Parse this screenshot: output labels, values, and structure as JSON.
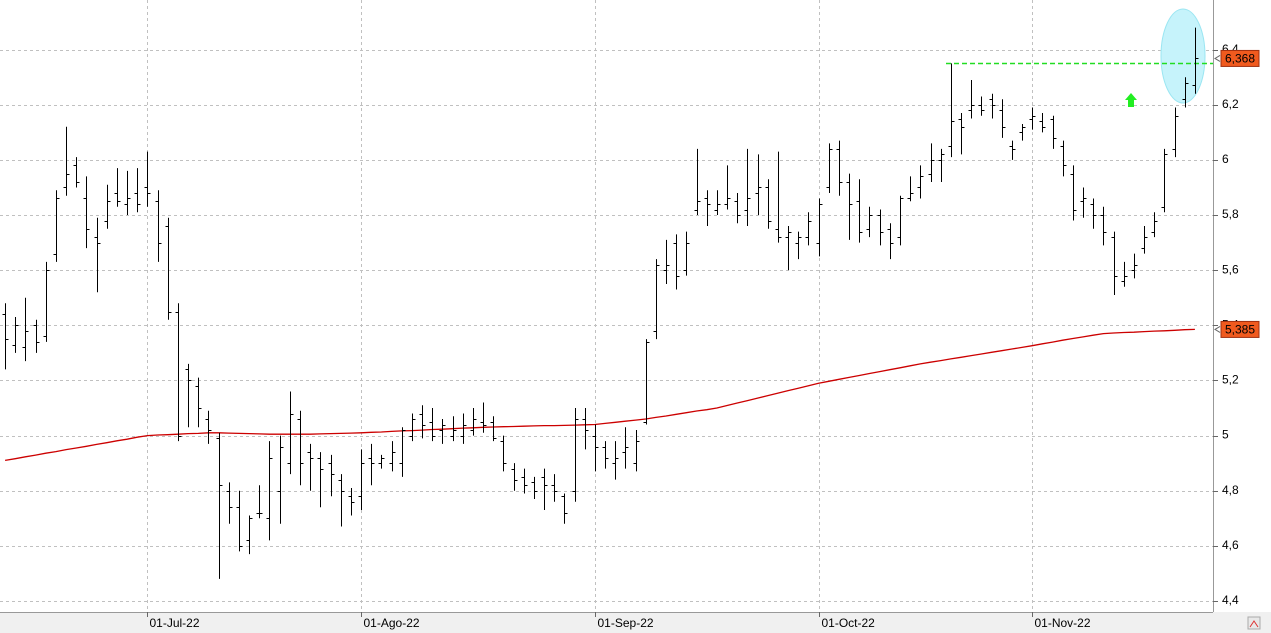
{
  "chart_data": {
    "type": "ohlc",
    "categories": [
      null,
      null,
      null,
      null,
      null,
      null,
      null,
      null,
      null,
      null,
      null,
      null,
      null,
      null,
      "01-Jul-22",
      null,
      null,
      null,
      null,
      null,
      null,
      null,
      null,
      null,
      null,
      null,
      null,
      null,
      null,
      null,
      null,
      null,
      null,
      null,
      null,
      "01-Ago-22",
      null,
      null,
      null,
      null,
      null,
      null,
      null,
      null,
      null,
      null,
      null,
      null,
      null,
      null,
      null,
      null,
      null,
      null,
      null,
      null,
      null,
      null,
      "01-Sep-22",
      null,
      null,
      null,
      null,
      null,
      null,
      null,
      null,
      null,
      null,
      null,
      null,
      null,
      null,
      null,
      null,
      null,
      null,
      null,
      null,
      null,
      "01-Oct-22",
      null,
      null,
      null,
      null,
      null,
      null,
      null,
      null,
      null,
      null,
      null,
      null,
      null,
      null,
      null,
      null,
      null,
      null,
      null,
      null,
      "01-Nov-22",
      null,
      null,
      null,
      null,
      null,
      null,
      null,
      null,
      null,
      null,
      null,
      null,
      null,
      null,
      null,
      null
    ],
    "open": [
      5.44,
      5.33,
      5.32,
      5.4,
      5.36,
      5.66,
      5.9,
      5.98,
      5.86,
      5.72,
      5.78,
      5.88,
      5.84,
      5.88,
      5.9,
      5.85,
      5.76,
      5.45,
      5.24,
      5.18,
      5.06,
      4.99,
      4.8,
      4.74,
      4.62,
      4.72,
      4.7,
      4.8,
      4.9,
      5.06,
      4.94,
      4.92,
      4.9,
      4.84,
      4.78,
      4.78,
      4.92,
      4.9,
      4.9,
      4.9,
      5.0,
      5.08,
      5.05,
      5.02,
      5.0,
      5.0,
      5.02,
      5.05,
      5.05,
      4.98,
      4.88,
      4.85,
      4.83,
      4.85,
      4.82,
      4.78,
      4.8,
      5.06,
      5.0,
      4.96,
      4.9,
      4.94,
      4.9,
      5.05,
      5.38,
      5.6,
      5.7,
      5.6,
      5.82,
      5.86,
      5.82,
      5.84,
      5.85,
      5.82,
      5.88,
      5.9,
      5.75,
      5.72,
      5.7,
      5.72,
      5.7,
      5.9,
      6.04,
      5.92,
      5.85,
      5.75,
      5.8,
      5.75,
      5.72,
      5.86,
      5.9,
      5.95,
      6.0,
      6.05,
      6.15,
      6.18,
      6.2,
      6.22,
      6.18,
      6.05,
      6.1,
      6.15,
      6.14,
      6.15,
      6.05,
      5.95,
      5.85,
      5.84,
      5.8,
      5.72,
      5.56,
      5.6,
      5.68,
      5.74,
      5.83,
      6.04,
      6.22,
      6.27
    ],
    "high": [
      5.48,
      5.43,
      5.5,
      5.42,
      5.63,
      5.89,
      6.12,
      6.01,
      5.94,
      5.79,
      5.91,
      5.97,
      5.96,
      5.97,
      6.03,
      5.89,
      5.79,
      5.48,
      5.26,
      5.21,
      5.09,
      5.01,
      4.83,
      4.8,
      4.71,
      4.82,
      4.98,
      5.0,
      5.16,
      5.09,
      4.97,
      4.94,
      4.93,
      4.86,
      4.81,
      4.95,
      4.97,
      4.93,
      4.98,
      5.03,
      5.08,
      5.11,
      5.1,
      5.06,
      5.07,
      5.08,
      5.1,
      5.12,
      5.07,
      5.0,
      4.9,
      4.88,
      4.85,
      4.88,
      4.86,
      4.79,
      5.1,
      5.1,
      5.04,
      4.98,
      4.98,
      5.03,
      5.02,
      5.35,
      5.64,
      5.71,
      5.73,
      5.74,
      6.04,
      5.89,
      5.89,
      5.98,
      5.88,
      6.04,
      6.02,
      5.93,
      6.03,
      5.76,
      5.74,
      5.81,
      5.86,
      6.06,
      6.07,
      5.95,
      5.93,
      5.83,
      5.82,
      5.77,
      5.87,
      5.94,
      5.98,
      6.06,
      6.04,
      6.35,
      6.17,
      6.29,
      6.23,
      6.24,
      6.22,
      6.07,
      6.13,
      6.19,
      6.17,
      6.16,
      6.07,
      5.98,
      5.9,
      5.86,
      5.83,
      5.74,
      5.63,
      5.66,
      5.76,
      5.81,
      6.04,
      6.19,
      6.3,
      6.48
    ],
    "low": [
      5.24,
      5.3,
      5.27,
      5.3,
      5.34,
      5.63,
      5.87,
      5.9,
      5.68,
      5.52,
      5.75,
      5.83,
      5.8,
      5.81,
      5.83,
      5.63,
      5.42,
      4.98,
      5.03,
      5.03,
      4.97,
      4.48,
      4.68,
      4.58,
      4.57,
      4.7,
      4.62,
      4.68,
      4.86,
      4.82,
      4.8,
      4.74,
      4.78,
      4.67,
      4.71,
      4.73,
      4.82,
      4.88,
      4.87,
      4.85,
      4.98,
      4.99,
      4.98,
      4.97,
      4.98,
      4.97,
      5.0,
      5.01,
      4.98,
      4.87,
      4.8,
      4.79,
      4.77,
      4.73,
      4.76,
      4.68,
      4.76,
      4.95,
      4.87,
      4.88,
      4.84,
      4.88,
      4.87,
      5.04,
      5.35,
      5.55,
      5.53,
      5.58,
      5.8,
      5.76,
      5.8,
      5.82,
      5.77,
      5.76,
      5.8,
      5.75,
      5.7,
      5.6,
      5.64,
      5.69,
      5.65,
      5.88,
      5.87,
      5.71,
      5.7,
      5.72,
      5.69,
      5.64,
      5.69,
      5.85,
      5.86,
      5.92,
      5.92,
      6.01,
      6.02,
      6.15,
      6.16,
      6.15,
      6.08,
      6.0,
      6.07,
      6.11,
      6.1,
      6.04,
      5.94,
      5.78,
      5.79,
      5.75,
      5.69,
      5.51,
      5.54,
      5.57,
      5.66,
      5.72,
      5.81,
      6.01,
      6.19,
      6.24
    ],
    "close": [
      5.35,
      5.4,
      5.38,
      5.34,
      5.6,
      5.86,
      5.95,
      5.92,
      5.75,
      5.7,
      5.85,
      5.85,
      5.86,
      5.84,
      5.88,
      5.7,
      5.45,
      5.0,
      5.2,
      5.1,
      5.02,
      4.82,
      4.74,
      4.6,
      4.7,
      4.72,
      4.92,
      4.96,
      5.08,
      4.9,
      4.92,
      4.88,
      4.86,
      4.8,
      4.76,
      4.9,
      4.9,
      4.92,
      4.94,
      5.02,
      5.06,
      5.04,
      5.0,
      5.04,
      5.02,
      5.04,
      5.06,
      5.04,
      4.99,
      4.9,
      4.84,
      4.82,
      4.8,
      4.82,
      4.8,
      4.72,
      5.06,
      5.02,
      4.96,
      4.92,
      4.92,
      4.96,
      4.98,
      5.34,
      5.62,
      5.62,
      5.58,
      5.7,
      5.85,
      5.84,
      5.84,
      5.86,
      5.8,
      5.86,
      5.9,
      5.78,
      5.72,
      5.74,
      5.72,
      5.78,
      5.84,
      6.04,
      5.92,
      5.84,
      5.74,
      5.8,
      5.74,
      5.7,
      5.86,
      5.88,
      5.94,
      6.0,
      6.02,
      6.14,
      6.12,
      6.2,
      6.18,
      6.2,
      6.12,
      6.04,
      6.12,
      6.16,
      6.12,
      6.08,
      5.98,
      5.82,
      5.86,
      5.8,
      5.74,
      5.58,
      5.58,
      5.62,
      5.72,
      5.78,
      6.02,
      6.16,
      6.28,
      6.368
    ],
    "bar_color": "#000000",
    "moving_average": {
      "color": "#cc0000",
      "values": [
        4.91,
        4.916,
        4.923,
        4.929,
        4.936,
        4.942,
        4.949,
        4.955,
        4.961,
        4.968,
        4.974,
        4.981,
        4.987,
        4.994,
        5.0,
        5.002,
        5.003,
        5.005,
        5.007,
        5.008,
        5.01,
        5.01,
        5.009,
        5.008,
        5.007,
        5.006,
        5.005,
        5.005,
        5.005,
        5.005,
        5.005,
        5.006,
        5.007,
        5.008,
        5.009,
        5.01,
        5.012,
        5.013,
        5.015,
        5.017,
        5.018,
        5.02,
        5.022,
        5.023,
        5.025,
        5.027,
        5.028,
        5.03,
        5.031,
        5.032,
        5.033,
        5.034,
        5.035,
        5.036,
        5.036,
        5.037,
        5.038,
        5.039,
        5.04,
        5.044,
        5.048,
        5.052,
        5.056,
        5.06,
        5.066,
        5.071,
        5.077,
        5.083,
        5.089,
        5.094,
        5.1,
        5.109,
        5.118,
        5.127,
        5.136,
        5.145,
        5.154,
        5.163,
        5.172,
        5.181,
        5.19,
        5.197,
        5.204,
        5.211,
        5.218,
        5.225,
        5.232,
        5.239,
        5.246,
        5.253,
        5.26,
        5.266,
        5.272,
        5.278,
        5.284,
        5.29,
        5.296,
        5.302,
        5.308,
        5.314,
        5.32,
        5.326,
        5.333,
        5.339,
        5.346,
        5.352,
        5.358,
        5.364,
        5.37,
        5.372,
        5.374,
        5.375,
        5.377,
        5.379,
        5.38,
        5.382,
        5.384,
        5.385
      ]
    },
    "hline": {
      "value": 6.35,
      "color": "#22dd22"
    },
    "price_labels": [
      {
        "value": 6.368,
        "label": "6,368"
      },
      {
        "value": 5.385,
        "label": "5,385"
      }
    ],
    "price_label_color": "#f05a1e",
    "ylim": [
      4.36,
      6.58
    ],
    "yticks": [
      {
        "value": 4.4,
        "label": "4,4"
      },
      {
        "value": 4.6,
        "label": "4,6"
      },
      {
        "value": 4.8,
        "label": "4,8"
      },
      5,
      {
        "value": 5.2,
        "label": "5,2"
      },
      {
        "value": 5.4,
        "label": "5,4"
      },
      {
        "value": 5.6,
        "label": "5,6"
      },
      {
        "value": 5.8,
        "label": "5,8"
      },
      6,
      {
        "value": 6.2,
        "label": "6,2"
      },
      {
        "value": 6.4,
        "label": "6,4"
      }
    ],
    "grid": true
  }
}
